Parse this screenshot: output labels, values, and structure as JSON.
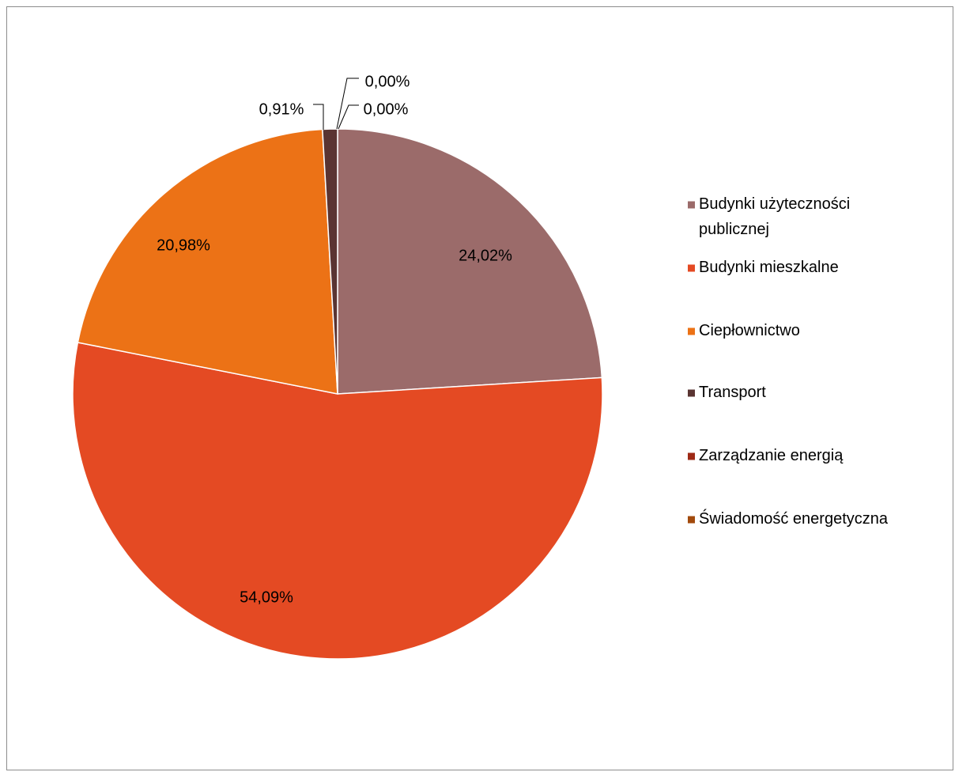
{
  "chart_data": {
    "type": "pie",
    "title": "",
    "legend_position": "right",
    "slices": [
      {
        "name": "Budynki użyteczności publicznej",
        "legend_lines": [
          "Budynki użyteczności",
          "publicznej"
        ],
        "value": 24.02,
        "label": "24,02%",
        "color": "#9b6b6a"
      },
      {
        "name": "Budynki mieszkalne",
        "legend_lines": [
          "Budynki mieszkalne"
        ],
        "value": 54.09,
        "label": "54,09%",
        "color": "#e44a23"
      },
      {
        "name": "Ciepłownictwo",
        "legend_lines": [
          "Ciepłownictwo"
        ],
        "value": 20.98,
        "label": "20,98%",
        "color": "#ec7216"
      },
      {
        "name": "Transport",
        "legend_lines": [
          "Transport"
        ],
        "value": 0.91,
        "label": "0,91%",
        "color": "#5a3432"
      },
      {
        "name": "Zarządzanie energią",
        "legend_lines": [
          "Zarządzanie energią"
        ],
        "value": 0.0,
        "label": "0,00%",
        "color": "#9e2a16"
      },
      {
        "name": "Świadomość energetyczna",
        "legend_lines": [
          "Świadomość energetyczna"
        ],
        "value": 0.0,
        "label": "0,00%",
        "color": "#a24a0c"
      }
    ]
  }
}
